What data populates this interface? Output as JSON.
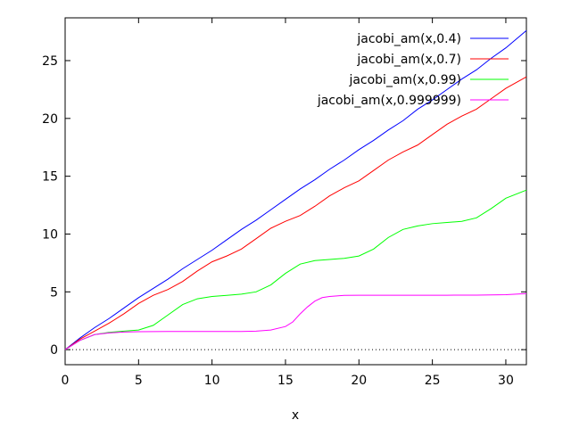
{
  "chart_data": {
    "type": "line",
    "title": "",
    "xlabel": "x",
    "ylabel": "",
    "xlim": [
      0,
      31.4
    ],
    "ylim": [
      -1.3,
      28.7
    ],
    "xticks": [
      0,
      5,
      10,
      15,
      20,
      25,
      30
    ],
    "yticks": [
      0,
      5,
      10,
      15,
      20,
      25
    ],
    "grid": false,
    "legend_position": "top-right",
    "zero_line": true,
    "series": [
      {
        "name": "jacobi_am(x,0.4)",
        "color": "#0000ff",
        "x": [
          0,
          1,
          2,
          3,
          4,
          5,
          6,
          7,
          8,
          9,
          10,
          11,
          12,
          13,
          14,
          15,
          16,
          17,
          18,
          19,
          20,
          21,
          22,
          23,
          24,
          25,
          26,
          27,
          28,
          29,
          30,
          31.4
        ],
        "y": [
          0,
          1.0,
          1.9,
          2.7,
          3.6,
          4.5,
          5.3,
          6.1,
          7.0,
          7.8,
          8.6,
          9.5,
          10.4,
          11.2,
          12.1,
          13.0,
          13.9,
          14.7,
          15.6,
          16.4,
          17.3,
          18.1,
          19.0,
          19.8,
          20.8,
          21.6,
          22.5,
          23.4,
          24.2,
          25.2,
          26.1,
          27.6
        ]
      },
      {
        "name": "jacobi_am(x,0.7)",
        "color": "#ff0000",
        "x": [
          0,
          1,
          2,
          3,
          4,
          5,
          6,
          7,
          8,
          9,
          10,
          11,
          12,
          13,
          14,
          15,
          16,
          17,
          18,
          19,
          20,
          21,
          22,
          23,
          24,
          25,
          26,
          27,
          28,
          29,
          30,
          31.4
        ],
        "y": [
          0,
          0.9,
          1.6,
          2.3,
          3.1,
          4.0,
          4.7,
          5.2,
          5.9,
          6.8,
          7.6,
          8.1,
          8.7,
          9.6,
          10.5,
          11.1,
          11.6,
          12.4,
          13.3,
          14.0,
          14.6,
          15.5,
          16.4,
          17.1,
          17.7,
          18.6,
          19.5,
          20.2,
          20.8,
          21.7,
          22.6,
          23.6
        ]
      },
      {
        "name": "jacobi_am(x,0.99)",
        "color": "#00ff00",
        "x": [
          0,
          1,
          2,
          3,
          4,
          5,
          6,
          7,
          8,
          9,
          10,
          11,
          12,
          13,
          14,
          15,
          16,
          17,
          18,
          19,
          20,
          21,
          22,
          23,
          24,
          25,
          26,
          27,
          28,
          29,
          30,
          31.4
        ],
        "y": [
          0,
          0.8,
          1.3,
          1.5,
          1.6,
          1.7,
          2.1,
          3.0,
          3.9,
          4.4,
          4.6,
          4.7,
          4.8,
          5.0,
          5.6,
          6.6,
          7.4,
          7.7,
          7.8,
          7.9,
          8.1,
          8.7,
          9.7,
          10.4,
          10.7,
          10.9,
          11.0,
          11.1,
          11.4,
          12.2,
          13.1,
          13.8
        ]
      },
      {
        "name": "jacobi_am(x,0.999999)",
        "color": "#ff00ff",
        "x": [
          0,
          1,
          2,
          3,
          4,
          5,
          6,
          7,
          8,
          9,
          10,
          11,
          12,
          13,
          14,
          15,
          15.5,
          16,
          16.5,
          17,
          17.5,
          18,
          18.5,
          19,
          20,
          22,
          24,
          26,
          28,
          30,
          31.4
        ],
        "y": [
          0,
          0.8,
          1.3,
          1.45,
          1.52,
          1.55,
          1.56,
          1.57,
          1.57,
          1.57,
          1.57,
          1.57,
          1.57,
          1.6,
          1.7,
          2.0,
          2.4,
          3.1,
          3.7,
          4.2,
          4.5,
          4.6,
          4.65,
          4.7,
          4.71,
          4.71,
          4.71,
          4.71,
          4.72,
          4.75,
          4.85
        ]
      }
    ]
  }
}
